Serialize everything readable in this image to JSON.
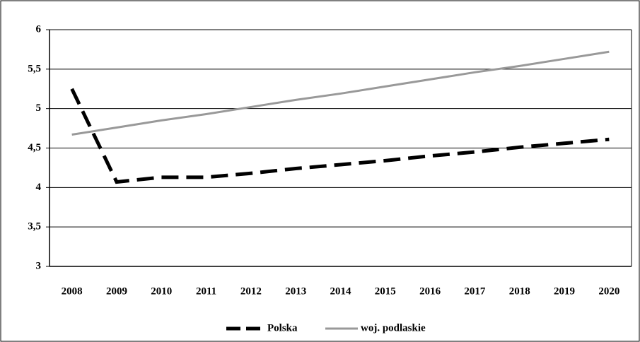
{
  "chart_data": {
    "type": "line",
    "categories": [
      "2008",
      "2009",
      "2010",
      "2011",
      "2012",
      "2013",
      "2014",
      "2015",
      "2016",
      "2017",
      "2018",
      "2019",
      "2020"
    ],
    "series": [
      {
        "name": "Polska",
        "color": "#000000",
        "values": [
          5.25,
          4.07,
          4.13,
          4.13,
          4.18,
          4.24,
          4.29,
          4.34,
          4.4,
          4.45,
          4.51,
          4.56,
          4.61
        ]
      },
      {
        "name": "woj. podlaskie",
        "color": "#999999",
        "values": [
          4.67,
          4.76,
          4.85,
          4.93,
          5.02,
          5.11,
          5.19,
          5.28,
          5.37,
          5.46,
          5.54,
          5.63,
          5.72
        ]
      }
    ],
    "ylim": [
      3,
      6
    ],
    "yticks": [
      3,
      {
        "value": 3.5,
        "label": "3,5"
      },
      4,
      {
        "value": 4.5,
        "label": "4,5"
      },
      5,
      {
        "value": 5.5,
        "label": "5,5"
      },
      6
    ],
    "grid": true,
    "legend": "bottom"
  }
}
